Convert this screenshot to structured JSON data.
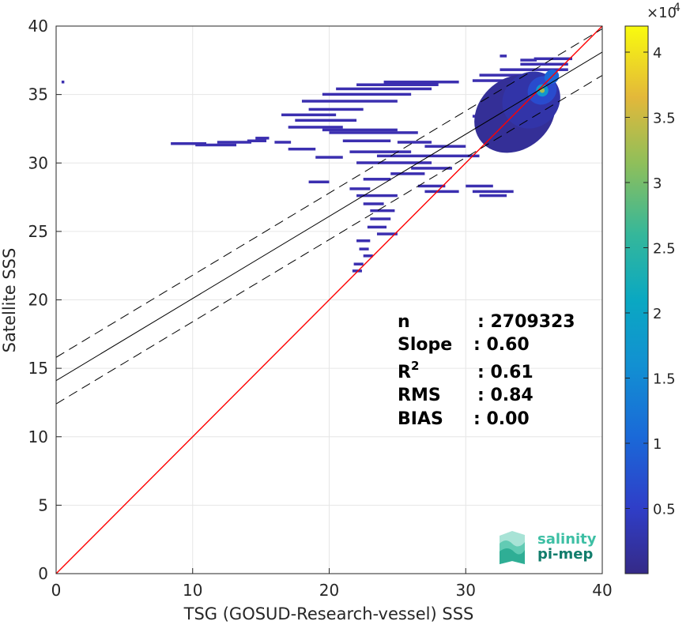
{
  "chart_data": {
    "type": "heatmap",
    "title": "",
    "xlabel": "TSG (GOSUD-Research-vessel) SSS",
    "ylabel": "Satellite SSS",
    "xlim": [
      0,
      40
    ],
    "ylim": [
      0,
      40
    ],
    "xticks": [
      0,
      10,
      20,
      30,
      40
    ],
    "yticks": [
      0,
      5,
      10,
      15,
      20,
      25,
      30,
      35,
      40
    ],
    "grid": true,
    "colorbar": {
      "range": [
        0,
        4.2
      ],
      "ticks": [
        0.5,
        1,
        1.5,
        2,
        2.5,
        3,
        3.5,
        4
      ],
      "multiplier_label": "×10",
      "multiplier_exponent": "4"
    },
    "lines": [
      {
        "kind": "one-to-one",
        "color": "#ff0000",
        "x": [
          0,
          40
        ],
        "y": [
          0,
          40
        ]
      },
      {
        "kind": "regression",
        "color": "#000000",
        "x": [
          0,
          40
        ],
        "y": [
          14.1,
          38.1
        ]
      },
      {
        "kind": "upper-band",
        "color": "#000000",
        "dashed": true,
        "x": [
          0,
          40
        ],
        "y": [
          15.8,
          39.8
        ]
      },
      {
        "kind": "lower-band",
        "color": "#000000",
        "dashed": true,
        "x": [
          0,
          40
        ],
        "y": [
          12.4,
          36.4
        ]
      }
    ],
    "stats": [
      {
        "label": "n",
        "sup": "",
        "value": ": 2709323"
      },
      {
        "label": "Slope",
        "sup": "",
        "value": ": 0.60"
      },
      {
        "label": "R",
        "sup": "2",
        "value": ": 0.61"
      },
      {
        "label": "RMS",
        "sup": "",
        "value": ": 0.84"
      },
      {
        "label": "BIAS",
        "sup": "",
        "value": ": 0.00"
      }
    ],
    "density_segments": [
      [
        0.4,
        35.9,
        0.6
      ],
      [
        8.4,
        31.4,
        11.0
      ],
      [
        10.2,
        31.3,
        13.2
      ],
      [
        14.0,
        31.6,
        15.4
      ],
      [
        11.8,
        31.5,
        14.3
      ],
      [
        14.6,
        31.8,
        15.6
      ],
      [
        16.0,
        31.5,
        17.2
      ],
      [
        16.5,
        33.5,
        20.5
      ],
      [
        17.5,
        33.1,
        22.0
      ],
      [
        17.0,
        32.6,
        21.0
      ],
      [
        18.5,
        33.9,
        22.5
      ],
      [
        18.0,
        34.5,
        25.0
      ],
      [
        19.5,
        35.0,
        26.0
      ],
      [
        20.5,
        35.4,
        27.5
      ],
      [
        22.0,
        35.7,
        28.0
      ],
      [
        24.0,
        35.9,
        29.5
      ],
      [
        19.5,
        32.4,
        25.0
      ],
      [
        20.0,
        32.2,
        26.5
      ],
      [
        21.0,
        31.6,
        24.5
      ],
      [
        17.0,
        31.0,
        19.0
      ],
      [
        21.5,
        30.8,
        26.0
      ],
      [
        19.0,
        30.4,
        21.0
      ],
      [
        23.5,
        30.5,
        31.0
      ],
      [
        22.0,
        30.0,
        27.5
      ],
      [
        26.0,
        29.6,
        29.0
      ],
      [
        24.5,
        29.2,
        27.0
      ],
      [
        22.5,
        28.8,
        24.5
      ],
      [
        18.5,
        28.6,
        20.0
      ],
      [
        21.5,
        28.1,
        23.0
      ],
      [
        22.0,
        27.6,
        25.0
      ],
      [
        22.5,
        27.0,
        24.0
      ],
      [
        23.0,
        26.5,
        24.8
      ],
      [
        23.0,
        25.9,
        24.5
      ],
      [
        22.8,
        25.3,
        24.2
      ],
      [
        23.5,
        24.8,
        25.0
      ],
      [
        22.0,
        24.3,
        23.0
      ],
      [
        22.2,
        23.7,
        22.9
      ],
      [
        22.5,
        23.2,
        23.2
      ],
      [
        21.8,
        22.6,
        22.5
      ],
      [
        21.7,
        22.1,
        22.4
      ],
      [
        26.5,
        28.3,
        28.5
      ],
      [
        27.0,
        27.9,
        29.5
      ],
      [
        30.0,
        28.3,
        32.0
      ],
      [
        30.5,
        27.9,
        33.5
      ],
      [
        31.0,
        27.6,
        33.0
      ],
      [
        27.0,
        31.2,
        30.0
      ],
      [
        25.0,
        31.5,
        27.5
      ],
      [
        30.5,
        36.0,
        36.5
      ],
      [
        31.0,
        36.4,
        36.0
      ],
      [
        32.5,
        36.8,
        37.5
      ],
      [
        34.0,
        37.2,
        37.5
      ],
      [
        35.0,
        37.6,
        37.8
      ],
      [
        32.5,
        37.8,
        33.0
      ],
      [
        34.0,
        37.5,
        35.2
      ],
      [
        30.5,
        33.4,
        35.5
      ],
      [
        31.0,
        33.0,
        34.5
      ]
    ],
    "density_blobs": [
      {
        "cx": 33.6,
        "cy": 33.6,
        "rx": 3.2,
        "ry": 2.6,
        "level": 0.03
      },
      {
        "cx": 34.8,
        "cy": 34.6,
        "rx": 2.2,
        "ry": 2.0,
        "level": 0.06
      },
      {
        "cx": 35.6,
        "cy": 35.3,
        "rx": 1.1,
        "ry": 1.0,
        "level": 0.16
      },
      {
        "cx": 35.6,
        "cy": 35.3,
        "rx": 0.45,
        "ry": 0.45,
        "level": 0.42
      },
      {
        "cx": 35.6,
        "cy": 35.3,
        "rx": 0.18,
        "ry": 0.18,
        "level": 0.78
      },
      {
        "cx": 36.3,
        "cy": 36.3,
        "rx": 0.55,
        "ry": 0.5,
        "level": 0.25
      }
    ],
    "logo": {
      "line1": "salinity",
      "line2": "pi-mep"
    }
  }
}
